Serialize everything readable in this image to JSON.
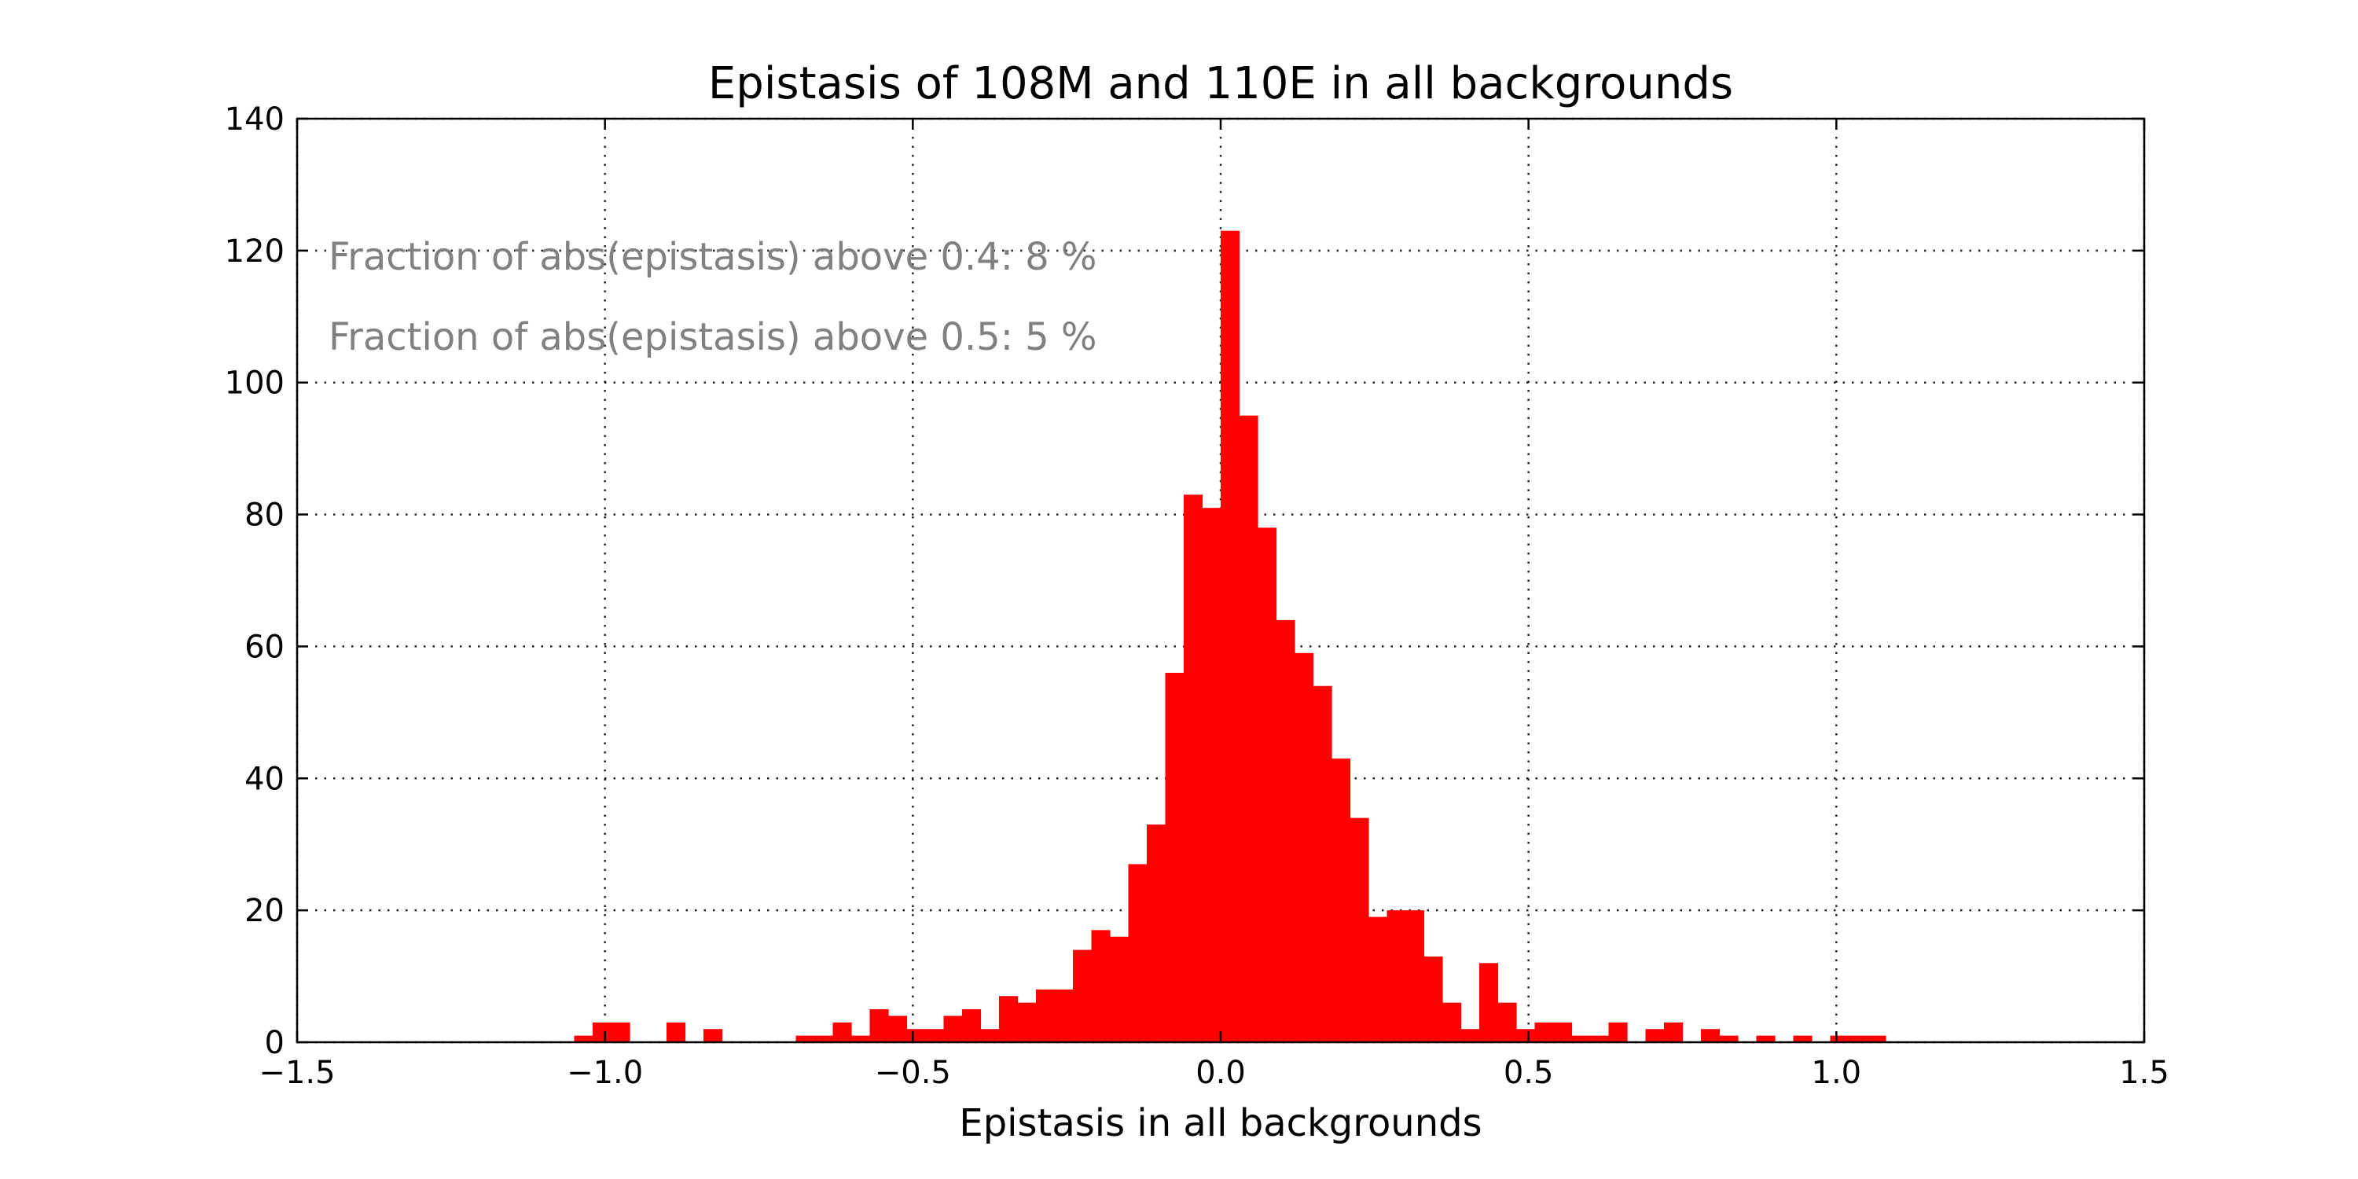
{
  "chart_data": {
    "type": "bar",
    "title": "Epistasis of 108M and 110E in all backgrounds",
    "xlabel": "Epistasis in all backgrounds",
    "ylabel": "",
    "xlim": [
      -1.5,
      1.5
    ],
    "ylim": [
      0,
      140
    ],
    "xticks": [
      -1.5,
      -1.0,
      -0.5,
      0.0,
      0.5,
      1.0,
      1.5
    ],
    "xtick_labels": [
      "−1.5",
      "−1.0",
      "−0.5",
      "0.0",
      "0.5",
      "1.0",
      "1.5"
    ],
    "yticks": [
      0,
      20,
      40,
      60,
      80,
      100,
      120,
      140
    ],
    "ytick_labels": [
      "0",
      "20",
      "40",
      "60",
      "80",
      "100",
      "120",
      "140"
    ],
    "grid": true,
    "color": "#ff0000",
    "bin_start": -1.05,
    "bin_width": 0.03,
    "counts": [
      1,
      3,
      3,
      0,
      0,
      3,
      0,
      2,
      0,
      0,
      0,
      0,
      1,
      1,
      3,
      1,
      5,
      4,
      2,
      2,
      4,
      5,
      2,
      7,
      6,
      8,
      8,
      14,
      17,
      16,
      27,
      33,
      56,
      83,
      81,
      123,
      95,
      78,
      64,
      59,
      54,
      43,
      34,
      19,
      20,
      20,
      13,
      6,
      2,
      12,
      6,
      2,
      3,
      3,
      1,
      1,
      3,
      0,
      2,
      3,
      0,
      2,
      1,
      0,
      1,
      0,
      1,
      0,
      1,
      1,
      1
    ],
    "annotations": [
      "Fraction of abs(epistasis) above 0.4: 8 %",
      "Fraction of abs(epistasis) above 0.5: 5 %"
    ]
  }
}
